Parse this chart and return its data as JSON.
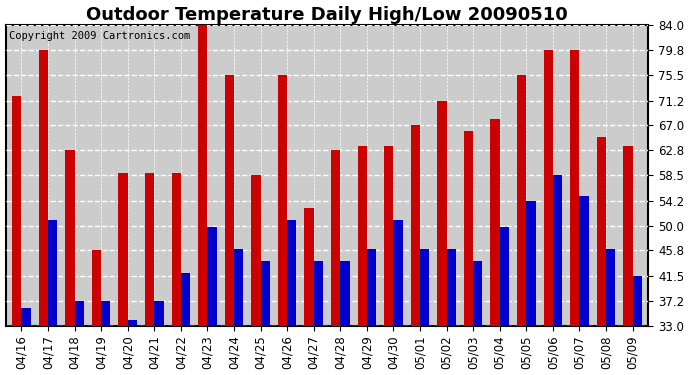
{
  "title": "Outdoor Temperature Daily High/Low 20090510",
  "copyright": "Copyright 2009 Cartronics.com",
  "dates": [
    "04/16",
    "04/17",
    "04/18",
    "04/19",
    "04/20",
    "04/21",
    "04/22",
    "04/23",
    "04/24",
    "04/25",
    "04/26",
    "04/27",
    "04/28",
    "04/29",
    "04/30",
    "05/01",
    "05/02",
    "05/03",
    "05/04",
    "05/05",
    "05/06",
    "05/07",
    "05/08",
    "05/09"
  ],
  "highs": [
    72.0,
    79.8,
    62.8,
    45.8,
    59.0,
    59.0,
    59.0,
    84.0,
    75.5,
    58.5,
    75.5,
    53.0,
    62.8,
    63.5,
    63.5,
    67.0,
    71.2,
    66.0,
    68.0,
    75.5,
    79.8,
    79.8,
    65.0,
    63.5
  ],
  "lows": [
    36.0,
    51.0,
    37.2,
    37.2,
    34.0,
    37.2,
    42.0,
    49.8,
    46.0,
    44.0,
    51.0,
    44.0,
    44.0,
    46.0,
    51.0,
    46.0,
    46.0,
    44.0,
    49.8,
    54.2,
    58.5,
    55.0,
    46.0,
    41.5
  ],
  "yticks": [
    33.0,
    37.2,
    41.5,
    45.8,
    50.0,
    54.2,
    58.5,
    62.8,
    67.0,
    71.2,
    75.5,
    79.8,
    84.0
  ],
  "ymin": 33.0,
  "ymax": 84.0,
  "bar_color_high": "#cc0000",
  "bar_color_low": "#0000cc",
  "background_color": "#ffffff",
  "plot_bg_color": "#cccccc",
  "grid_color": "#ffffff",
  "title_fontsize": 13,
  "copyright_fontsize": 7.5,
  "tick_fontsize": 8.5,
  "bar_width": 0.35
}
